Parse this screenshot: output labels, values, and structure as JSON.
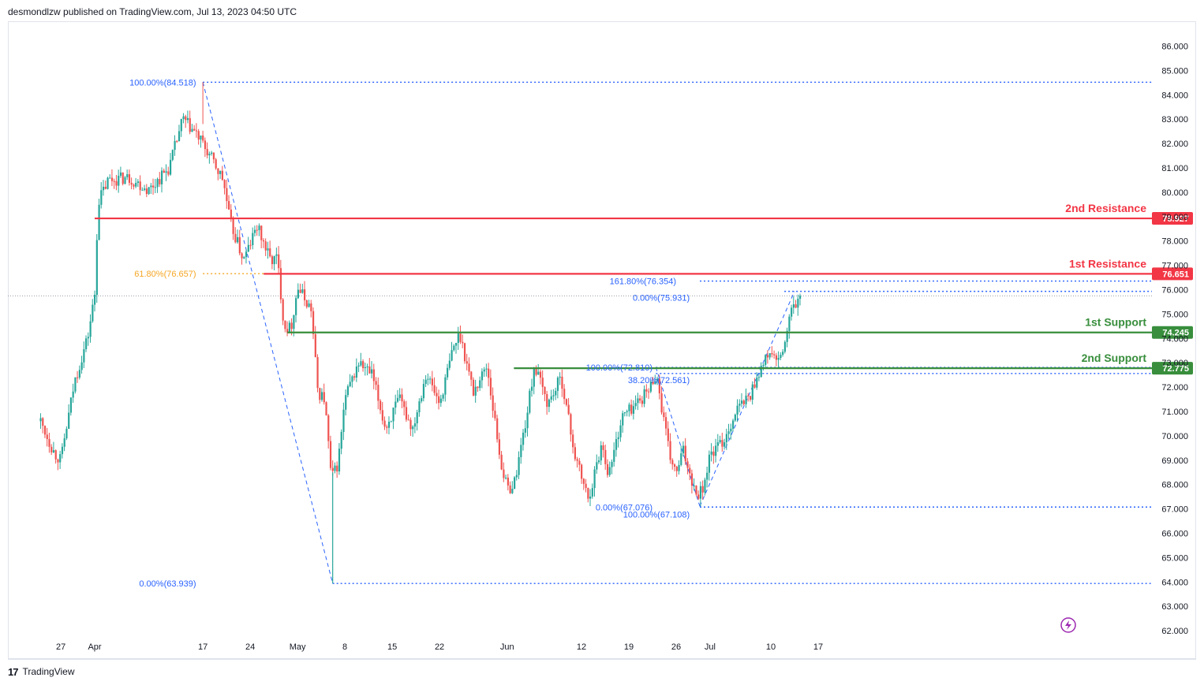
{
  "header": {
    "text": "desmondlzw published on TradingView.com, Jul 13, 2023 04:50 UTC"
  },
  "footer": {
    "logo": "17",
    "brand": "TradingView"
  },
  "colors": {
    "up": "#26a69a",
    "down": "#ef5350",
    "resistance": "#f23645",
    "support": "#388e3c",
    "fib_blue": "#2962ff",
    "fib_orange": "#f5a623"
  },
  "chart_data": {
    "type": "candlestick",
    "title": "",
    "y_axis": {
      "ticks": [
        "86.000",
        "85.000",
        "84.000",
        "83.000",
        "82.000",
        "81.000",
        "80.000",
        "79.000",
        "78.000",
        "77.000",
        "76.000",
        "75.000",
        "74.000",
        "73.000",
        "72.000",
        "71.000",
        "70.000",
        "69.000",
        "68.000",
        "67.000",
        "66.000",
        "65.000",
        "64.000",
        "63.000",
        "62.000"
      ],
      "tick_values": [
        86,
        85,
        84,
        83,
        82,
        81,
        80,
        79,
        78,
        77,
        76,
        75,
        74,
        73,
        72,
        71,
        70,
        69,
        68,
        67,
        66,
        65,
        64,
        63,
        62
      ],
      "range": [
        62,
        86
      ]
    },
    "x_axis": {
      "ticks": [
        "27",
        "Apr",
        "17",
        "24",
        "May",
        "8",
        "15",
        "22",
        "Jun",
        "12",
        "19",
        "26",
        "Jul",
        "10",
        "17"
      ],
      "tick_days": [
        -4,
        1,
        17,
        24,
        31,
        38,
        45,
        52,
        62,
        73,
        80,
        87,
        92,
        101,
        108
      ]
    },
    "last_price": 75.75,
    "levels": [
      {
        "label": "2nd Resistance",
        "value": 78.927,
        "badge": "78.927",
        "kind": "resistance"
      },
      {
        "label": "1st Resistance",
        "value": 76.651,
        "badge": "76.651",
        "kind": "resistance"
      },
      {
        "label": "1st Support",
        "value": 74.245,
        "badge": "74.245",
        "kind": "support"
      },
      {
        "label": "2nd Support",
        "value": 72.775,
        "badge": "72.775",
        "kind": "support"
      }
    ],
    "fib_labels": [
      {
        "text": "100.00%(84.518)",
        "value": 84.518
      },
      {
        "text": "61.80%(76.657)",
        "value": 76.657
      },
      {
        "text": "0.00%(63.939)",
        "value": 63.939
      },
      {
        "text": "161.80%(76.354)",
        "value": 76.354
      },
      {
        "text": "0.00%(75.931)",
        "value": 75.931
      },
      {
        "text": "100.00%(72.810)",
        "value": 72.81
      },
      {
        "text": "38.20%(72.561)",
        "value": 72.561
      },
      {
        "text": "0.00%(67.076)",
        "value": 67.076
      },
      {
        "text": "100.00%(67.108)",
        "value": 67.108
      }
    ],
    "anchors": [
      {
        "day": -7,
        "price": 70.6
      },
      {
        "day": -5,
        "price": 69.3
      },
      {
        "day": -4,
        "price": 69.0
      },
      {
        "day": -2,
        "price": 72.2
      },
      {
        "day": 0,
        "price": 74.1
      },
      {
        "day": 1,
        "price": 75.8
      },
      {
        "day": 1.5,
        "price": 79.6
      },
      {
        "day": 3,
        "price": 80.5
      },
      {
        "day": 6,
        "price": 80.6
      },
      {
        "day": 9,
        "price": 80.1
      },
      {
        "day": 12,
        "price": 81.0
      },
      {
        "day": 14,
        "price": 83.0
      },
      {
        "day": 16,
        "price": 82.4
      },
      {
        "day": 18,
        "price": 81.5
      },
      {
        "day": 20,
        "price": 80.5
      },
      {
        "day": 21,
        "price": 78.8
      },
      {
        "day": 23,
        "price": 77.2
      },
      {
        "day": 25,
        "price": 78.6
      },
      {
        "day": 27,
        "price": 77.2
      },
      {
        "day": 28,
        "price": 77.3
      },
      {
        "day": 29,
        "price": 74.5
      },
      {
        "day": 30,
        "price": 74.4
      },
      {
        "day": 31,
        "price": 76.1
      },
      {
        "day": 33,
        "price": 75.2
      },
      {
        "day": 34,
        "price": 71.8
      },
      {
        "day": 35,
        "price": 71.5
      },
      {
        "day": 36,
        "price": 68.2
      },
      {
        "day": 37,
        "price": 68.9
      },
      {
        "day": 38,
        "price": 71.5
      },
      {
        "day": 40,
        "price": 73.0
      },
      {
        "day": 42,
        "price": 72.5
      },
      {
        "day": 44,
        "price": 70.3
      },
      {
        "day": 46,
        "price": 71.5
      },
      {
        "day": 48,
        "price": 70.3
      },
      {
        "day": 50,
        "price": 72.6
      },
      {
        "day": 52,
        "price": 71.3
      },
      {
        "day": 54,
        "price": 73.6
      },
      {
        "day": 55,
        "price": 74.2
      },
      {
        "day": 57,
        "price": 71.8
      },
      {
        "day": 59,
        "price": 72.9
      },
      {
        "day": 61,
        "price": 69.0
      },
      {
        "day": 62,
        "price": 67.8
      },
      {
        "day": 63,
        "price": 68.0
      },
      {
        "day": 65,
        "price": 71.0
      },
      {
        "day": 66,
        "price": 72.9
      },
      {
        "day": 68,
        "price": 71.3
      },
      {
        "day": 70,
        "price": 72.4
      },
      {
        "day": 72,
        "price": 69.2
      },
      {
        "day": 74,
        "price": 67.4
      },
      {
        "day": 76,
        "price": 69.7
      },
      {
        "day": 77,
        "price": 68.4
      },
      {
        "day": 79,
        "price": 70.8
      },
      {
        "day": 81,
        "price": 71.3
      },
      {
        "day": 83,
        "price": 71.9
      },
      {
        "day": 84,
        "price": 72.6
      },
      {
        "day": 86,
        "price": 69.2
      },
      {
        "day": 87,
        "price": 68.4
      },
      {
        "day": 88,
        "price": 69.4
      },
      {
        "day": 90,
        "price": 67.6
      },
      {
        "day": 91,
        "price": 67.9
      },
      {
        "day": 92,
        "price": 69.2
      },
      {
        "day": 94,
        "price": 69.8
      },
      {
        "day": 96,
        "price": 71.1
      },
      {
        "day": 98,
        "price": 71.7
      },
      {
        "day": 99,
        "price": 72.5
      },
      {
        "day": 101,
        "price": 73.5
      },
      {
        "day": 102,
        "price": 72.9
      },
      {
        "day": 103,
        "price": 73.7
      },
      {
        "day": 104,
        "price": 75.1
      },
      {
        "day": 105.5,
        "price": 75.75
      }
    ]
  }
}
